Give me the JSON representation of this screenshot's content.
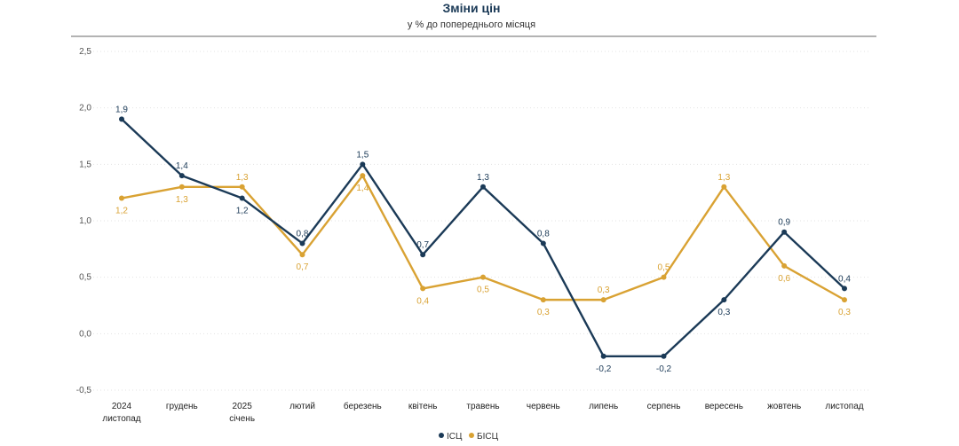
{
  "chart_data": {
    "type": "line",
    "title": "Зміни цін",
    "subtitle": "у % до попереднього місяця",
    "categories": [
      [
        "2024",
        "листопад"
      ],
      [
        "грудень"
      ],
      [
        "2025",
        "січень"
      ],
      [
        "лютий"
      ],
      [
        "березень"
      ],
      [
        "квітень"
      ],
      [
        "травень"
      ],
      [
        "червень"
      ],
      [
        "липень"
      ],
      [
        "серпень"
      ],
      [
        "вересень"
      ],
      [
        "жовтень"
      ],
      [
        "листопад"
      ]
    ],
    "ylim": [
      -0.5,
      2.5
    ],
    "yticks": [
      "-0,5",
      "0,0",
      "0,5",
      "1,0",
      "1,5",
      "2,0",
      "2,5"
    ],
    "ytick_values": [
      -0.5,
      0.0,
      0.5,
      1.0,
      1.5,
      2.0,
      2.5
    ],
    "grid": true,
    "legend": "bottom-center",
    "series": [
      {
        "name": "ІСЦ",
        "color": "#1b3a57",
        "values": [
          1.9,
          1.4,
          1.2,
          0.8,
          1.5,
          0.7,
          1.3,
          0.8,
          -0.2,
          -0.2,
          0.3,
          0.9,
          0.4
        ],
        "labels": [
          "1,9",
          "1,4",
          "1,2",
          "0,8",
          "1,5",
          "0,7",
          "1,3",
          "0,8",
          "-0,2",
          "-0,2",
          "0,3",
          "0,9",
          "0,4"
        ]
      },
      {
        "name": "БІСЦ",
        "color": "#d9a233",
        "values": [
          1.2,
          1.3,
          1.3,
          0.7,
          1.4,
          0.4,
          0.5,
          0.3,
          0.3,
          0.5,
          1.3,
          0.6,
          0.3
        ],
        "labels": [
          "1,2",
          "1,3",
          "1,3",
          "0,7",
          "1,4",
          "0,4",
          "0,5",
          "0,3",
          "0,3",
          "0,5",
          "1,3",
          "0,6",
          "0,3"
        ]
      }
    ]
  }
}
